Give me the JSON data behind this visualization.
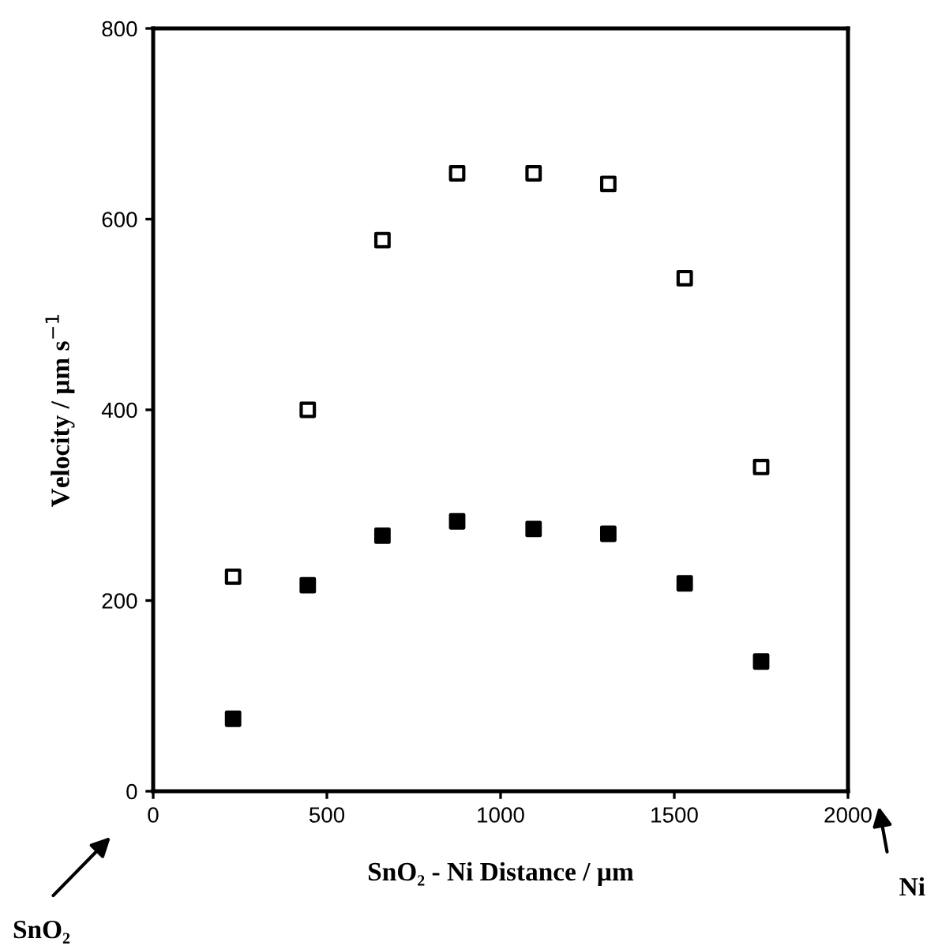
{
  "chart_data": {
    "type": "scatter",
    "xlabel": "SnO₂ - Ni Distance / µm",
    "ylabel": "Velocity / µm s$^{−1}$",
    "x": [
      230,
      445,
      660,
      875,
      1095,
      1310,
      1530,
      1750
    ],
    "series": [
      {
        "color": "#ffffff",
        "values": [
          225,
          400,
          578,
          648,
          648,
          637,
          538,
          340
        ]
      },
      {
        "color": "#000000",
        "values": [
          76,
          216,
          268,
          283,
          275,
          270,
          218,
          136
        ]
      }
    ],
    "xlim": [
      0,
      2000
    ],
    "xticks": [
      0,
      500,
      1000,
      1500,
      2000
    ],
    "ylim": [
      0,
      800
    ],
    "yticks": [
      0,
      200,
      400,
      600,
      800
    ],
    "marker": "square",
    "grid": false,
    "legend": false,
    "annotations": [
      "SnO₂",
      "Ni"
    ]
  }
}
